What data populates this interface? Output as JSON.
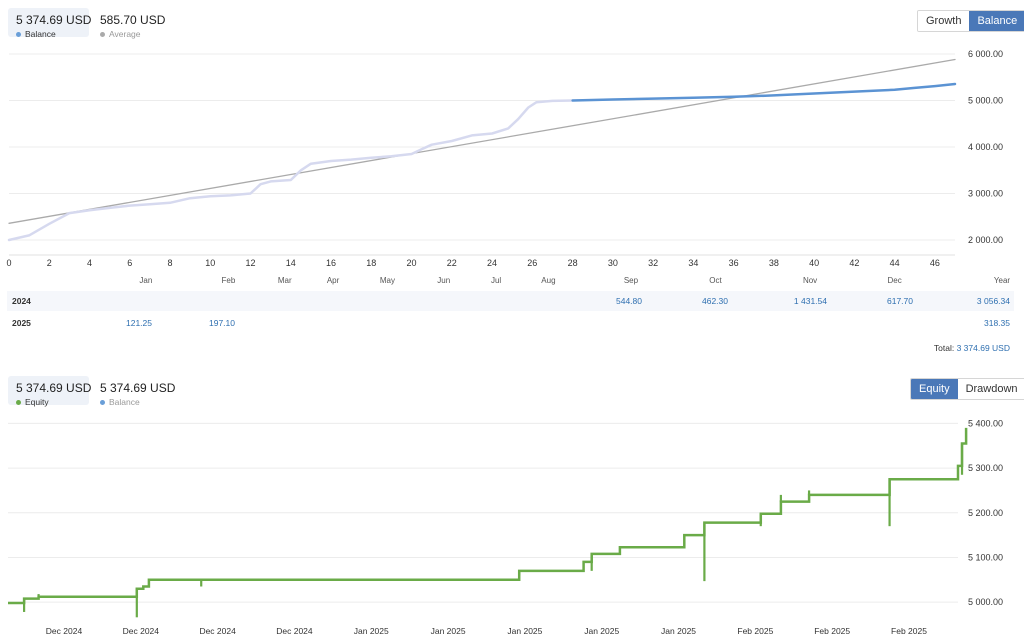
{
  "top_panel": {
    "stats": [
      {
        "value": "5 374.69 USD",
        "legend": "Balance",
        "color": "#6a9fd8"
      },
      {
        "value": "585.70 USD",
        "legend": "Average",
        "color": "#aaaaaa"
      }
    ],
    "toggle": [
      "Growth",
      "Balance"
    ],
    "active_toggle": "Balance"
  },
  "bottom_panel": {
    "stats": [
      {
        "value": "5 374.69 USD",
        "legend": "Equity",
        "color": "#6aab48"
      },
      {
        "value": "5 374.69 USD",
        "legend": "Balance",
        "color": "#6a9fd8"
      }
    ],
    "toggle": [
      "Equity",
      "Drawdown"
    ],
    "active_toggle": "Equity"
  },
  "table": {
    "year_header": "Year",
    "rows": [
      {
        "year": "2024",
        "values": {
          "Sep": "544.80",
          "Oct": "462.30",
          "Nov": "1 431.54",
          "Dec": "617.70"
        },
        "total": "3 056.34"
      },
      {
        "year": "2025",
        "values": {
          "Jan": "121.25",
          "Feb": "197.10"
        },
        "total": "318.35"
      }
    ],
    "total_label": "Total:",
    "total_value": "3 374.69 USD"
  },
  "chart_data": [
    {
      "type": "line",
      "x_ticks": [
        0,
        2,
        4,
        6,
        8,
        10,
        12,
        14,
        16,
        18,
        20,
        22,
        24,
        26,
        28,
        30,
        32,
        34,
        36,
        38,
        40,
        42,
        44,
        46
      ],
      "month_labels": [
        {
          "label": "Jan",
          "x": 6.8
        },
        {
          "label": "Feb",
          "x": 10.9
        },
        {
          "label": "Mar",
          "x": 13.7
        },
        {
          "label": "Apr",
          "x": 16.1
        },
        {
          "label": "May",
          "x": 18.8
        },
        {
          "label": "Jun",
          "x": 21.6
        },
        {
          "label": "Jul",
          "x": 24.2
        },
        {
          "label": "Aug",
          "x": 26.8
        },
        {
          "label": "Sep",
          "x": 30.9
        },
        {
          "label": "Oct",
          "x": 35.1
        },
        {
          "label": "Nov",
          "x": 39.8
        },
        {
          "label": "Dec",
          "x": 44.0
        }
      ],
      "y_ticks": [
        2000,
        3000,
        4000,
        5000,
        6000
      ],
      "y_tick_labels": [
        "2 000.00",
        "3 000.00",
        "4 000.00",
        "5 000.00",
        "6 000.00"
      ],
      "xlim": [
        0,
        47
      ],
      "ylim": [
        1700,
        6300
      ],
      "grid": true,
      "series": [
        {
          "name": "Average",
          "color": "#aaaaaa",
          "x": [
            0,
            47
          ],
          "y": [
            2360,
            5880
          ]
        },
        {
          "name": "Balance",
          "color": "#d6d9ef",
          "x": [
            0,
            1,
            2,
            3,
            4,
            5,
            6,
            7,
            8,
            9,
            10,
            11,
            12,
            12.5,
            13,
            14,
            14.5,
            15,
            16,
            17,
            18,
            19,
            20,
            20.5,
            21,
            22,
            23,
            24,
            24.8,
            25.3,
            25.8,
            26.2,
            27,
            28
          ],
          "y": [
            2000,
            2100,
            2350,
            2580,
            2640,
            2690,
            2740,
            2770,
            2800,
            2900,
            2940,
            2960,
            3000,
            3200,
            3260,
            3290,
            3500,
            3640,
            3700,
            3730,
            3770,
            3800,
            3850,
            3950,
            4050,
            4130,
            4250,
            4290,
            4400,
            4600,
            4850,
            4960,
            4990,
            5000
          ]
        },
        {
          "name": "Balance",
          "color": "#5b93d3",
          "x": [
            28,
            30,
            32,
            34,
            36,
            38,
            40,
            42,
            44,
            45,
            46,
            47
          ],
          "y": [
            5000,
            5020,
            5040,
            5060,
            5080,
            5110,
            5150,
            5190,
            5230,
            5270,
            5310,
            5355
          ]
        }
      ]
    },
    {
      "type": "line",
      "name": "Equity",
      "color": "#6aab48",
      "x_tick_labels": [
        "Dec 2024",
        "Dec 2024",
        "Dec 2024",
        "Dec 2024",
        "Jan 2025",
        "Jan 2025",
        "Jan 2025",
        "Jan 2025",
        "Jan 2025",
        "Feb 2025",
        "Feb 2025",
        "Feb 2025"
      ],
      "y_ticks": [
        5000,
        5100,
        5200,
        5300,
        5400
      ],
      "y_tick_labels": [
        "5 000.00",
        "5 100.00",
        "5 200.00",
        "5 300.00",
        "5 400.00"
      ],
      "ylim": [
        4960,
        5430
      ],
      "xlim": [
        0,
        118
      ],
      "grid": true,
      "steps": [
        {
          "x": 0,
          "y": 4998
        },
        {
          "x": 2,
          "y": 5008,
          "spike": 4978
        },
        {
          "x": 3.8,
          "y": 5012,
          "spike": 5018
        },
        {
          "x": 16,
          "y": 5030,
          "spike": 4966
        },
        {
          "x": 16.8,
          "y": 5035
        },
        {
          "x": 17.5,
          "y": 5050
        },
        {
          "x": 24,
          "y": 5050,
          "spike": 5035
        },
        {
          "x": 63.5,
          "y": 5070,
          "spike": 5060
        },
        {
          "x": 71.5,
          "y": 5090
        },
        {
          "x": 72.5,
          "y": 5108,
          "spike": 5070
        },
        {
          "x": 76,
          "y": 5123
        },
        {
          "x": 84,
          "y": 5150,
          "spike": 5145
        },
        {
          "x": 86.5,
          "y": 5178,
          "spike": 5047
        },
        {
          "x": 93.5,
          "y": 5198,
          "spike": 5170
        },
        {
          "x": 96,
          "y": 5225,
          "spike": 5240
        },
        {
          "x": 99.5,
          "y": 5240,
          "spike": 5250
        },
        {
          "x": 109.5,
          "y": 5275,
          "spike": 5170
        },
        {
          "x": 118,
          "y": 5305
        },
        {
          "x": 118.5,
          "y": 5355,
          "spike": 5285
        },
        {
          "x": 119,
          "y": 5390
        }
      ]
    }
  ]
}
